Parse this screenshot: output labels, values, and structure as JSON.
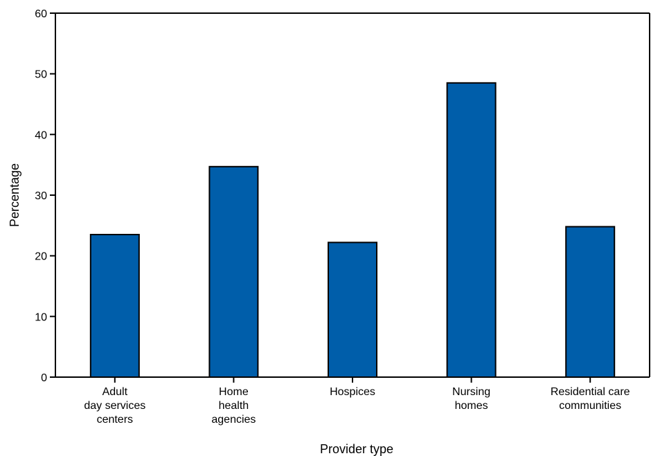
{
  "chart_data": {
    "type": "bar",
    "categories": [
      [
        "Adult",
        "day services",
        "centers"
      ],
      [
        "Home",
        "health",
        "agencies"
      ],
      [
        "Hospices"
      ],
      [
        "Nursing",
        "homes"
      ],
      [
        "Residential care",
        "communities"
      ]
    ],
    "values": [
      23.5,
      34.7,
      22.2,
      48.5,
      24.8
    ],
    "xlabel": "Provider type",
    "ylabel": "Percentage",
    "ylim": [
      0,
      60
    ],
    "yticks": [
      0,
      10,
      20,
      30,
      40,
      50,
      60
    ],
    "grid": false,
    "bar_color": "#005eaa",
    "bar_edge_color": "#000000"
  }
}
